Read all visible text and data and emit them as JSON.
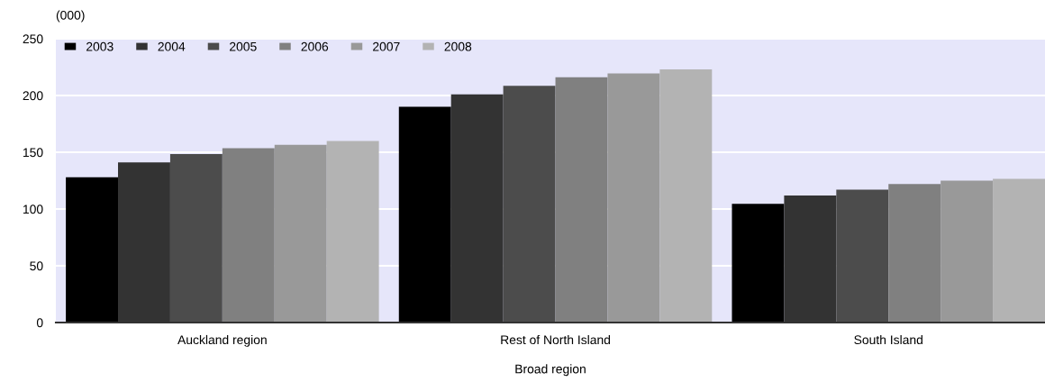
{
  "chart_data": {
    "type": "bar",
    "ylabel": "(000)",
    "xlabel": "Broad region",
    "categories": [
      "Auckland region",
      "Rest of North Island",
      "South Island"
    ],
    "series": [
      {
        "name": "2003",
        "color": "#000000",
        "values": [
          128,
          190,
          104.5
        ]
      },
      {
        "name": "2004",
        "color": "#333333",
        "values": [
          141,
          201,
          112
        ]
      },
      {
        "name": "2005",
        "color": "#4c4c4c",
        "values": [
          148.5,
          208.5,
          117
        ]
      },
      {
        "name": "2006",
        "color": "#808080",
        "values": [
          153.5,
          216,
          122
        ]
      },
      {
        "name": "2007",
        "color": "#999999",
        "values": [
          156.5,
          219.5,
          125
        ]
      },
      {
        "name": "2008",
        "color": "#b3b3b3",
        "values": [
          160,
          223,
          126.5
        ]
      }
    ],
    "ylim": [
      0,
      250
    ],
    "yticks": [
      0,
      50,
      100,
      150,
      200,
      250
    ],
    "grid": "y",
    "legend": "top left"
  }
}
